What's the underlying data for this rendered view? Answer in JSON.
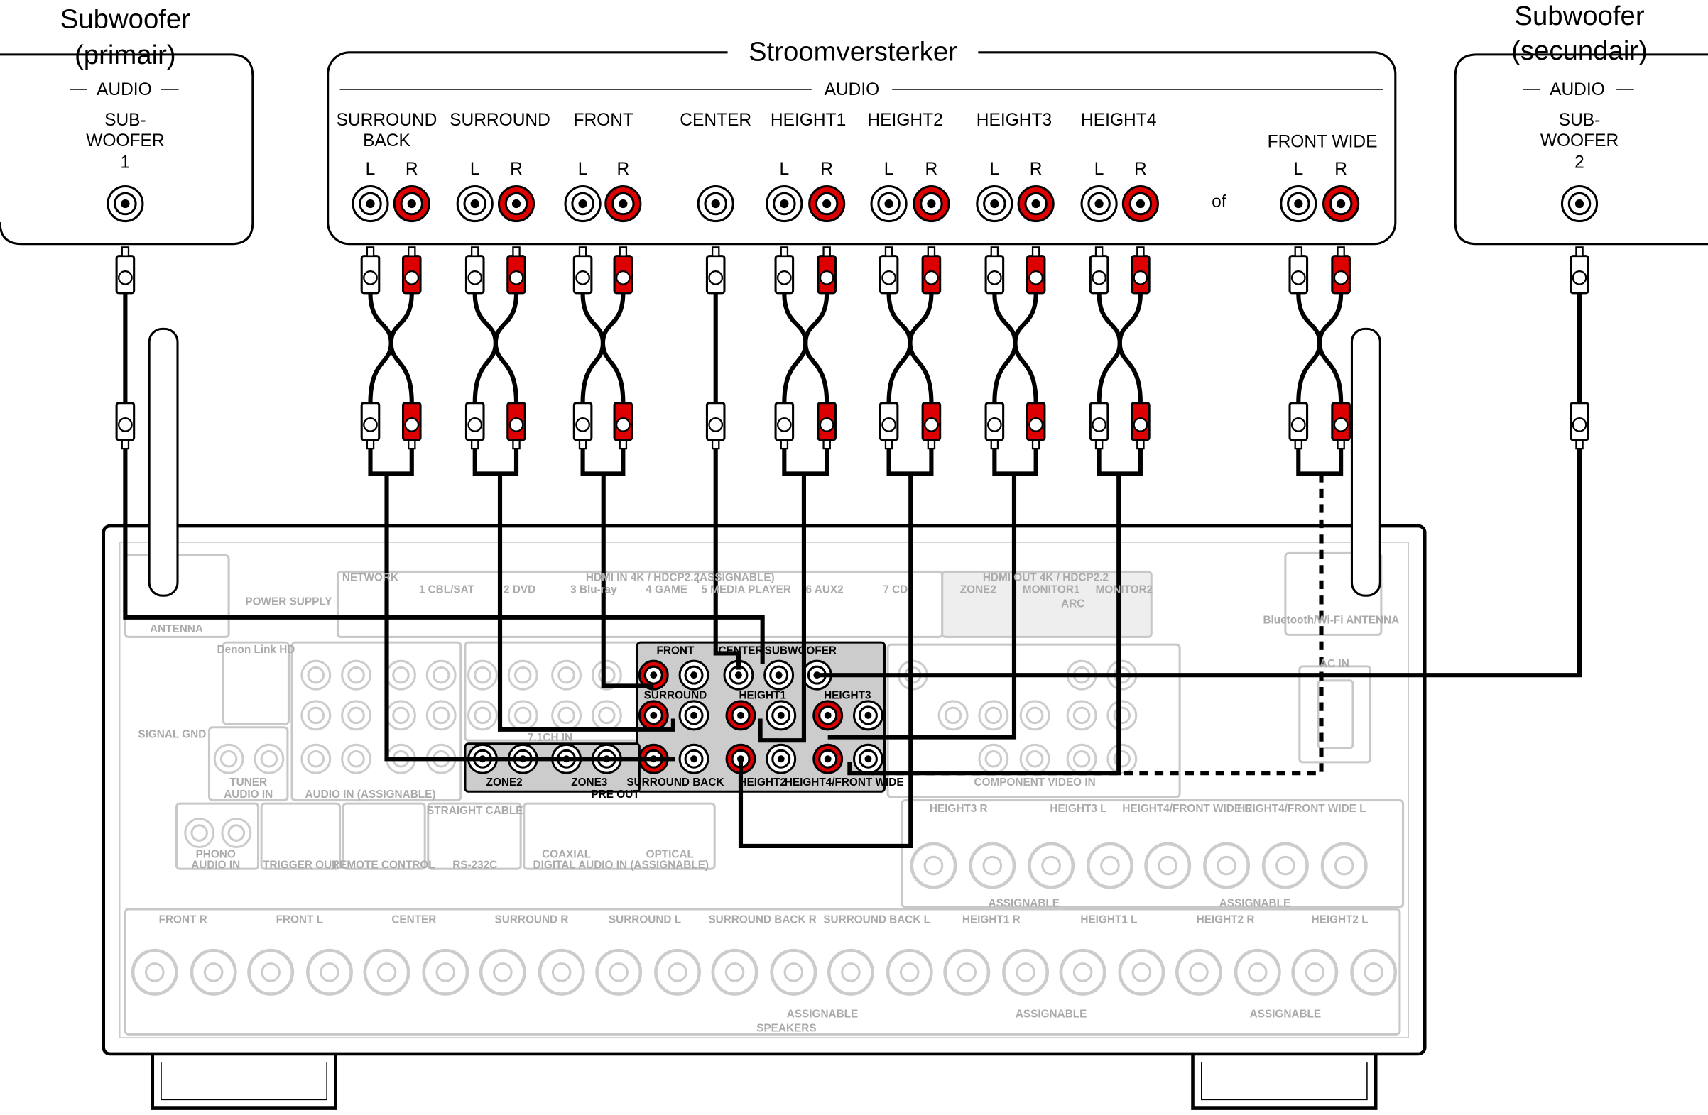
{
  "subwoofer_primary": {
    "title": [
      "Subwoofer",
      "(primair)"
    ],
    "section": "AUDIO",
    "jack": [
      "SUB-",
      "WOOFER",
      "1"
    ]
  },
  "amplifier": {
    "title": "Stroomversterker",
    "section": "AUDIO",
    "or": "of",
    "channels": [
      {
        "label": [
          "SURROUND",
          "BACK"
        ],
        "left": "L",
        "right": "R"
      },
      {
        "label": [
          "SURROUND"
        ],
        "left": "L",
        "right": "R"
      },
      {
        "label": [
          "FRONT"
        ],
        "left": "L",
        "right": "R"
      },
      {
        "label": [
          "CENTER"
        ]
      },
      {
        "label": [
          "HEIGHT1"
        ],
        "left": "L",
        "right": "R"
      },
      {
        "label": [
          "HEIGHT2"
        ],
        "left": "L",
        "right": "R"
      },
      {
        "label": [
          "HEIGHT3"
        ],
        "left": "L",
        "right": "R"
      },
      {
        "label": [
          "HEIGHT4"
        ],
        "left": "L",
        "right": "R"
      },
      {
        "label": [
          "FRONT WIDE"
        ],
        "left": "L",
        "right": "R"
      }
    ]
  },
  "subwoofer_secondary": {
    "title": [
      "Subwoofer",
      "(secundair)"
    ],
    "section": "AUDIO",
    "jack": [
      "SUB-",
      "WOOFER",
      "2"
    ]
  },
  "receiver": {
    "labels": [
      "NETWORK",
      "HDMI IN 4K / HDCP2.2",
      "(ASSIGNABLE)",
      "1 CBL/SAT",
      "2 DVD",
      "3 Blu-ray",
      "4 GAME",
      "5 MEDIA PLAYER",
      "6 AUX2",
      "7 CD",
      "HDMI OUT 4K / HDCP2.2",
      "ZONE2",
      "MONITOR1",
      "MONITOR2",
      "ARC",
      "POWER SUPPLY",
      "ANTENNA",
      "Denon Link HD",
      "SIGNAL GND",
      "TUNER",
      "AUDIO IN",
      "AUDIO IN (ASSIGNABLE)",
      "7.1CH IN",
      "FRONT",
      "CENTER",
      "SUBWOOFER",
      "SURROUND",
      "HEIGHT1",
      "HEIGHT3",
      "ZONE2",
      "ZONE3",
      "SURROUND BACK",
      "HEIGHT2",
      "HEIGHT4/FRONT WIDE",
      "PRE OUT",
      "PHONO",
      "AUDIO IN",
      "TRIGGER OUT",
      "REMOTE CONTROL",
      "RS-232C",
      "STRAIGHT CABLE",
      "DIGITAL AUDIO IN (ASSIGNABLE)",
      "COAXIAL",
      "OPTICAL",
      "COMPONENT VIDEO IN",
      "Bluetooth/Wi-Fi ANTENNA",
      "AC IN",
      "HEIGHT3 R",
      "HEIGHT3 L",
      "HEIGHT4/FRONT WIDE R",
      "HEIGHT4/FRONT WIDE L",
      "ASSIGNABLE",
      "ASSIGNABLE",
      "FRONT R",
      "FRONT L",
      "CENTER",
      "SURROUND R",
      "SURROUND L",
      "SURROUND BACK R",
      "SURROUND BACK L",
      "HEIGHT1 R",
      "HEIGHT1 L",
      "HEIGHT2 R",
      "HEIGHT2 L",
      "ASSIGNABLE",
      "ASSIGNABLE",
      "ASSIGNABLE",
      "SPEAKERS"
    ]
  }
}
